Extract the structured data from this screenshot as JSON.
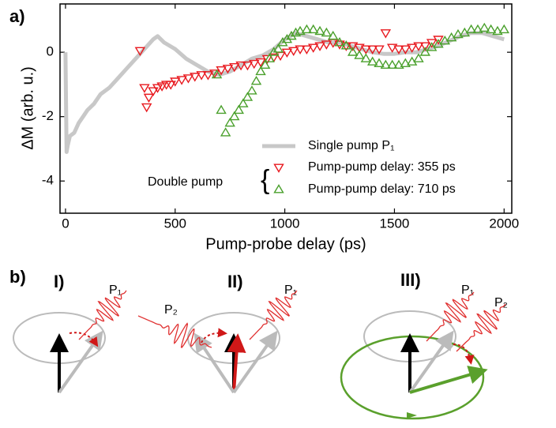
{
  "chart_data": {
    "type": "scatter",
    "panel_label": "a)",
    "xlabel": "Pump-probe delay (ps)",
    "ylabel": "ΔM (arb. u.)",
    "xlim": [
      -25,
      2035
    ],
    "ylim": [
      -5,
      1.5
    ],
    "xticks": [
      0,
      500,
      1000,
      1500,
      2000
    ],
    "yticks": [
      0,
      -2,
      -4
    ],
    "legend_group": "Double pump",
    "series": [
      {
        "name": "Single pump P₁",
        "color": "#c8c8c8",
        "marker": "line",
        "x": [
          0,
          5,
          10,
          20,
          40,
          60,
          80,
          100,
          130,
          160,
          200,
          240,
          280,
          320,
          360,
          400,
          420,
          450,
          500,
          550,
          600,
          650,
          700,
          750,
          800,
          850,
          900,
          950,
          1000,
          1050,
          1100,
          1150,
          1200,
          1250,
          1300,
          1350,
          1400,
          1450,
          1500,
          1550,
          1600,
          1650,
          1700,
          1750,
          1800,
          1850,
          1900,
          1950,
          2000
        ],
        "values": [
          0,
          -3.1,
          -2.9,
          -2.6,
          -2.5,
          -2.2,
          -2.0,
          -1.8,
          -1.6,
          -1.3,
          -1.1,
          -0.8,
          -0.5,
          -0.2,
          0.1,
          0.4,
          0.5,
          0.3,
          0.1,
          -0.2,
          -0.4,
          -0.6,
          -0.7,
          -0.6,
          -0.4,
          -0.2,
          -0.1,
          0.1,
          0.4,
          0.6,
          0.5,
          0.4,
          0.3,
          0.3,
          0.2,
          0.1,
          0.0,
          -0.05,
          -0.05,
          0.0,
          0.0,
          0.1,
          0.2,
          0.35,
          0.5,
          0.6,
          0.6,
          0.5,
          0.4
        ]
      },
      {
        "name": "Pump-pump delay: 355 ps",
        "color": "#e8191f",
        "marker": "triangle-down",
        "x": [
          340,
          360,
          370,
          380,
          400,
          420,
          440,
          460,
          480,
          500,
          530,
          560,
          590,
          620,
          650,
          680,
          710,
          740,
          770,
          800,
          830,
          860,
          890,
          920,
          950,
          980,
          1010,
          1040,
          1070,
          1100,
          1130,
          1160,
          1190,
          1220,
          1250,
          1280,
          1310,
          1340,
          1370,
          1400,
          1430,
          1460,
          1490,
          1520,
          1550,
          1580,
          1610,
          1640,
          1670,
          1700
        ],
        "values": [
          0.05,
          -1.1,
          -1.7,
          -1.4,
          -1.2,
          -1.1,
          -1.05,
          -1.0,
          -1.0,
          -0.9,
          -0.85,
          -0.8,
          -0.75,
          -0.7,
          -0.7,
          -0.65,
          -0.55,
          -0.5,
          -0.45,
          -0.4,
          -0.4,
          -0.35,
          -0.3,
          -0.2,
          -0.15,
          -0.1,
          0.0,
          0.05,
          0.1,
          0.1,
          0.15,
          0.2,
          0.25,
          0.3,
          0.25,
          0.2,
          0.2,
          0.15,
          0.1,
          0.1,
          0.1,
          0.6,
          0.15,
          0.1,
          0.1,
          0.15,
          0.2,
          0.2,
          0.3,
          0.4
        ]
      },
      {
        "name": "Pump-pump delay: 710 ps",
        "color": "#4aa02c",
        "marker": "triangle-up",
        "x": [
          690,
          710,
          730,
          750,
          770,
          790,
          810,
          830,
          850,
          870,
          890,
          910,
          930,
          950,
          970,
          990,
          1010,
          1030,
          1050,
          1070,
          1100,
          1130,
          1160,
          1190,
          1220,
          1250,
          1280,
          1310,
          1340,
          1370,
          1400,
          1430,
          1460,
          1490,
          1520,
          1550,
          1580,
          1610,
          1640,
          1670,
          1700,
          1730,
          1760,
          1790,
          1820,
          1850,
          1880,
          1910,
          1940,
          1970,
          2000
        ],
        "values": [
          -0.7,
          -1.8,
          -2.5,
          -2.2,
          -2.0,
          -1.8,
          -1.6,
          -1.4,
          -1.2,
          -0.9,
          -0.6,
          -0.4,
          -0.2,
          0.0,
          0.1,
          0.3,
          0.4,
          0.5,
          0.6,
          0.65,
          0.7,
          0.7,
          0.65,
          0.6,
          0.5,
          0.3,
          0.2,
          0.0,
          -0.1,
          -0.2,
          -0.3,
          -0.35,
          -0.4,
          -0.4,
          -0.4,
          -0.35,
          -0.3,
          -0.2,
          0.0,
          0.15,
          0.25,
          0.35,
          0.45,
          0.55,
          0.6,
          0.7,
          0.7,
          0.75,
          0.7,
          0.65,
          0.7
        ]
      }
    ]
  },
  "diagram": {
    "panel_label": "b)",
    "stages": [
      "I)",
      "II)",
      "III)"
    ],
    "p1": "P₁",
    "p2": "P₂"
  }
}
